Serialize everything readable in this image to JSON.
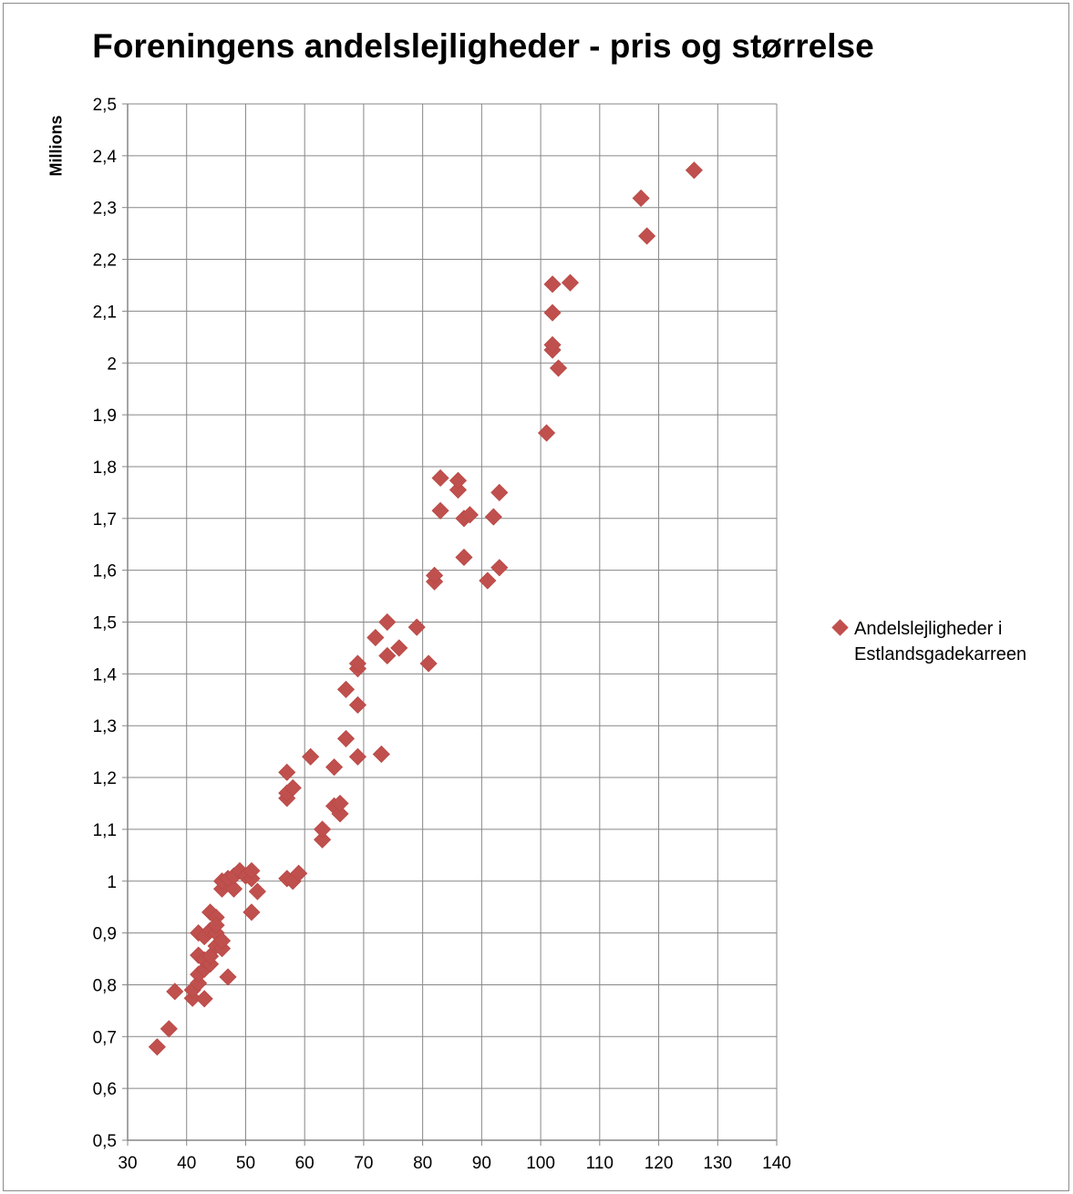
{
  "chart_data": {
    "type": "scatter",
    "title": "Foreningens andelslejligheder - pris og størrelse",
    "xlabel": "",
    "ylabel": "Millions",
    "xlim": [
      30,
      140
    ],
    "ylim": [
      0.5,
      2.5
    ],
    "x_ticks": [
      "30",
      "40",
      "50",
      "60",
      "70",
      "80",
      "90",
      "100",
      "110",
      "120",
      "130",
      "140"
    ],
    "y_ticks": [
      "0,5",
      "0,6",
      "0,7",
      "0,8",
      "0,9",
      "1",
      "1,1",
      "1,2",
      "1,3",
      "1,4",
      "1,5",
      "1,6",
      "1,7",
      "1,8",
      "1,9",
      "2",
      "2,1",
      "2,2",
      "2,3",
      "2,4",
      "2,5"
    ],
    "grid": true,
    "legend_position": "right",
    "colors": {
      "marker": "#c0504d",
      "grid": "#878787",
      "axis": "#868686"
    },
    "series": [
      {
        "name": "Andelslejligheder i Estlandsgadekarreen",
        "marker": "diamond",
        "points": [
          [
            35,
            0.68
          ],
          [
            37,
            0.715
          ],
          [
            38,
            0.787
          ],
          [
            41,
            0.774
          ],
          [
            41,
            0.79
          ],
          [
            42,
            0.803
          ],
          [
            42,
            0.82
          ],
          [
            42,
            0.857
          ],
          [
            42,
            0.9
          ],
          [
            43,
            0.773
          ],
          [
            43,
            0.83
          ],
          [
            43,
            0.848
          ],
          [
            43,
            0.893
          ],
          [
            44,
            0.84
          ],
          [
            44,
            0.855
          ],
          [
            44,
            0.905
          ],
          [
            44,
            0.94
          ],
          [
            45,
            0.875
          ],
          [
            45,
            0.9
          ],
          [
            45,
            0.93
          ],
          [
            45,
            0.915
          ],
          [
            46,
            0.87
          ],
          [
            46,
            0.885
          ],
          [
            46,
            0.985
          ],
          [
            46,
            1.0
          ],
          [
            47,
            0.815
          ],
          [
            47,
            1.005
          ],
          [
            48,
            0.985
          ],
          [
            48,
            1.01
          ],
          [
            49,
            1.02
          ],
          [
            50,
            1.01
          ],
          [
            51,
            0.94
          ],
          [
            51,
            1.005
          ],
          [
            51,
            1.02
          ],
          [
            52,
            0.98
          ],
          [
            57,
            1.005
          ],
          [
            57,
            1.16
          ],
          [
            57,
            1.17
          ],
          [
            57,
            1.21
          ],
          [
            58,
            1.0
          ],
          [
            58,
            1.18
          ],
          [
            59,
            1.015
          ],
          [
            61,
            1.24
          ],
          [
            63,
            1.08
          ],
          [
            63,
            1.1
          ],
          [
            65,
            1.145
          ],
          [
            65,
            1.22
          ],
          [
            66,
            1.13
          ],
          [
            66,
            1.15
          ],
          [
            67,
            1.275
          ],
          [
            67,
            1.37
          ],
          [
            69,
            1.24
          ],
          [
            69,
            1.34
          ],
          [
            69,
            1.41
          ],
          [
            69,
            1.42
          ],
          [
            72,
            1.47
          ],
          [
            73,
            1.245
          ],
          [
            74,
            1.435
          ],
          [
            74,
            1.5
          ],
          [
            76,
            1.45
          ],
          [
            79,
            1.49
          ],
          [
            81,
            1.42
          ],
          [
            82,
            1.578
          ],
          [
            82,
            1.59
          ],
          [
            83,
            1.715
          ],
          [
            83,
            1.778
          ],
          [
            86,
            1.755
          ],
          [
            86,
            1.773
          ],
          [
            87,
            1.625
          ],
          [
            87,
            1.7
          ],
          [
            88,
            1.707
          ],
          [
            91,
            1.58
          ],
          [
            92,
            1.703
          ],
          [
            93,
            1.605
          ],
          [
            93,
            1.75
          ],
          [
            101,
            1.865
          ],
          [
            102,
            2.025
          ],
          [
            102,
            2.035
          ],
          [
            102,
            2.097
          ],
          [
            102,
            2.152
          ],
          [
            103,
            1.99
          ],
          [
            105,
            2.155
          ],
          [
            117,
            2.318
          ],
          [
            118,
            2.245
          ],
          [
            126,
            2.372
          ]
        ]
      }
    ]
  }
}
